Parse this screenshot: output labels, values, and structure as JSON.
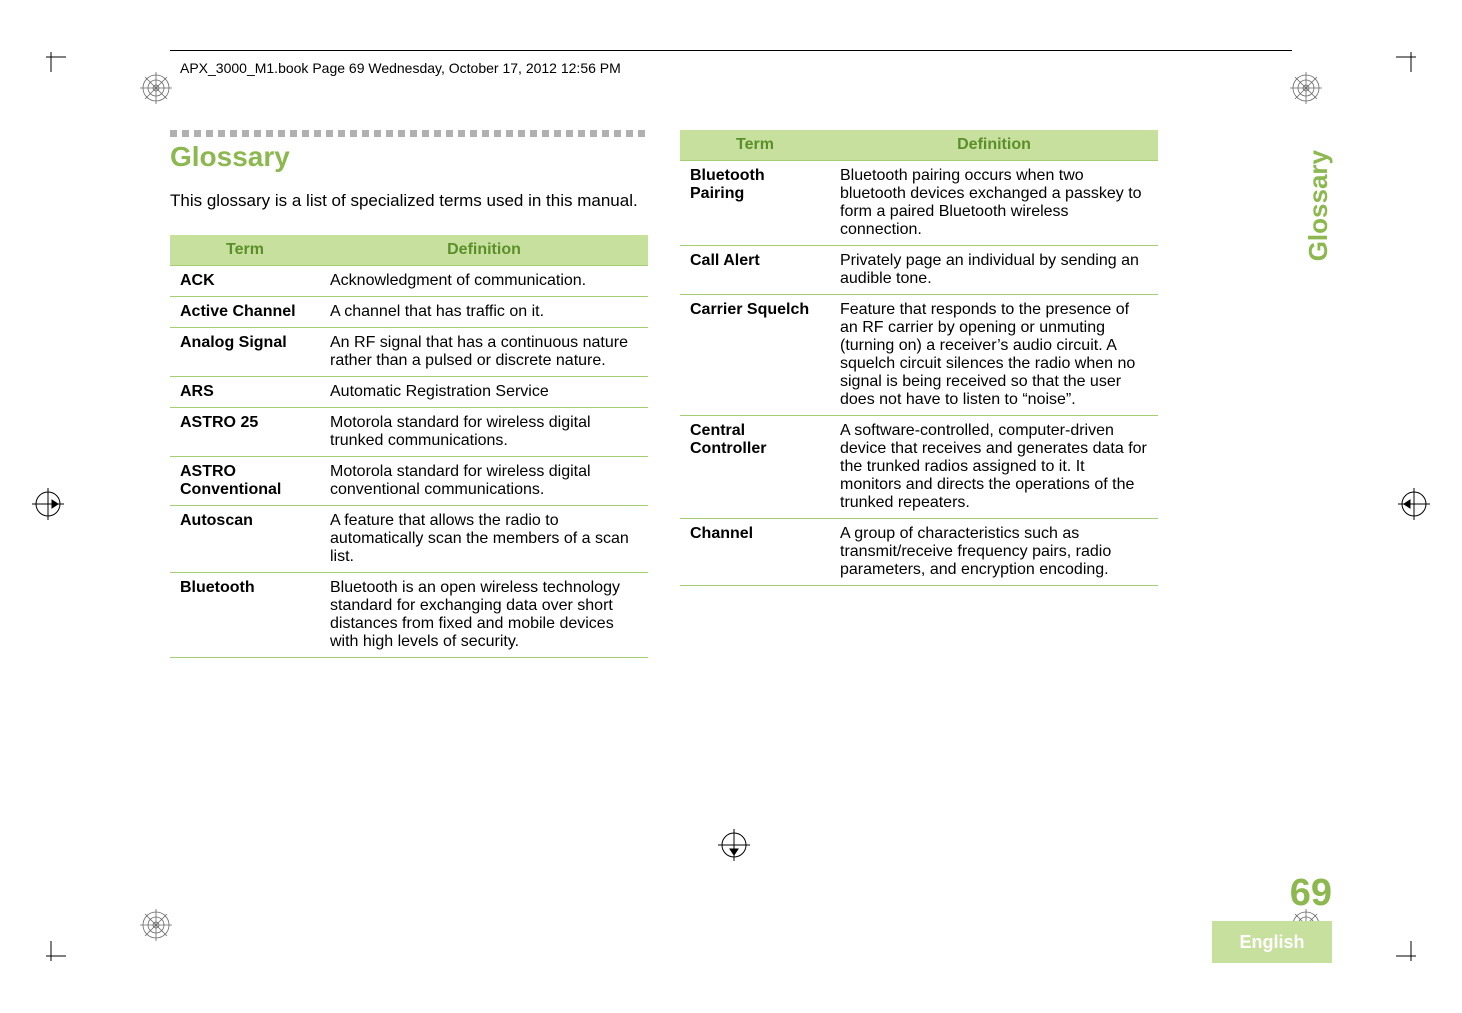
{
  "colors": {
    "accent": "#8cb84f",
    "header_bg": "#c7e09e",
    "header_text": "#5b8f2a",
    "row_sep": "#a8cc72",
    "dot": "#b0b0b0",
    "page_number": "#8cb84f",
    "lang_bg": "#c7e09e",
    "side_tab_text": "#8cb84f"
  },
  "running_header": "APX_3000_M1.book  Page 69  Wednesday, October 17, 2012  12:56 PM",
  "heading": "Glossary",
  "intro": "This glossary is a list of specialized terms used in this manual.",
  "table_headers": {
    "term": "Term",
    "definition": "Definition"
  },
  "left_rows": [
    {
      "term": "ACK",
      "definition": "Acknowledgment of communication."
    },
    {
      "term": "Active Channel",
      "definition": "A channel that has traffic on it."
    },
    {
      "term": "Analog Signal",
      "definition": "An RF signal that has a continuous nature rather than a pulsed or discrete nature."
    },
    {
      "term": "ARS",
      "definition": "Automatic Registration Service"
    },
    {
      "term": "ASTRO 25",
      "definition": "Motorola standard for wireless digital trunked communications."
    },
    {
      "term": "ASTRO Conventional",
      "definition": "Motorola standard for wireless digital conventional communications."
    },
    {
      "term": "Autoscan",
      "definition": "A feature that allows the radio to automatically scan the members of a scan list."
    },
    {
      "term": "Bluetooth",
      "definition": "Bluetooth is an open wireless technology standard for exchanging data over short distances from fixed and mobile devices with high levels of security."
    }
  ],
  "right_rows": [
    {
      "term": "Bluetooth Pairing",
      "definition": "Bluetooth pairing occurs when two bluetooth devices exchanged a passkey to form a paired Bluetooth wireless connection."
    },
    {
      "term": "Call Alert",
      "definition": "Privately page an individual by sending an audible tone."
    },
    {
      "term": "Carrier Squelch",
      "definition": "Feature that responds to the presence of an RF carrier by opening or unmuting (turning on) a receiver’s audio circuit. A squelch circuit silences the radio when no signal is being received so that the user does not have to listen to “noise”."
    },
    {
      "term": "Central Controller",
      "definition": "A software-controlled, computer-driven device that receives and generates data for the trunked radios assigned to it. It monitors and directs the operations of the trunked repeaters."
    },
    {
      "term": "Channel",
      "definition": "A group of characteristics such as transmit/receive frequency pairs, radio parameters, and encryption encoding."
    }
  ],
  "footer": {
    "page_number": "69",
    "language": "English"
  },
  "side_tab": "Glossary"
}
